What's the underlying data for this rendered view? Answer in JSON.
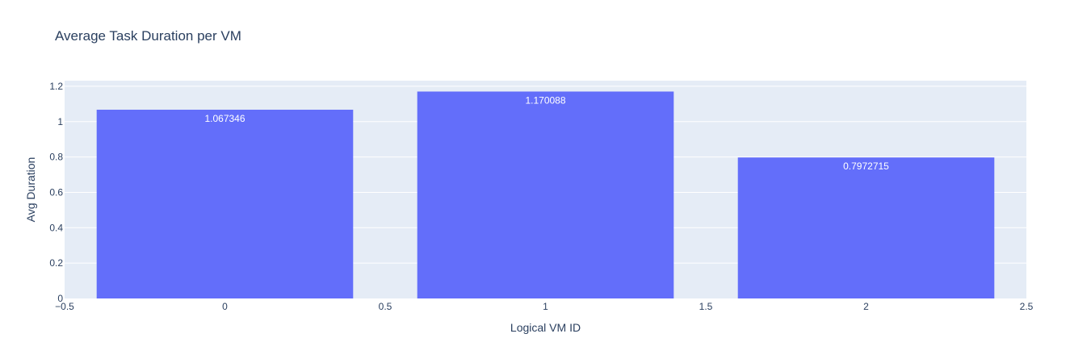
{
  "chart_data": {
    "type": "bar",
    "title": "Average Task Duration per VM",
    "xlabel": "Logical VM ID",
    "ylabel": "Avg Duration",
    "x": [
      0,
      1,
      2
    ],
    "values": [
      1.067346,
      1.170088,
      0.7972715
    ],
    "data_labels": [
      "1.067346",
      "1.170088",
      "0.7972715"
    ],
    "xlim": [
      -0.5,
      2.5
    ],
    "ylim": [
      0,
      1.2316
    ],
    "x_ticks": [
      -0.5,
      0,
      0.5,
      1,
      1.5,
      2,
      2.5
    ],
    "x_tick_labels": [
      "−0.5",
      "0",
      "0.5",
      "1",
      "1.5",
      "2",
      "2.5"
    ],
    "y_ticks": [
      0,
      0.2,
      0.4,
      0.6,
      0.8,
      1,
      1.2
    ],
    "y_tick_labels": [
      "0",
      "0.2",
      "0.4",
      "0.6",
      "0.8",
      "1",
      "1.2"
    ],
    "bar_width": 0.8,
    "grid": true,
    "colors": {
      "bar": "#636efa",
      "plot_background": "#e5ecf6",
      "text": "#2a3f5f"
    }
  }
}
